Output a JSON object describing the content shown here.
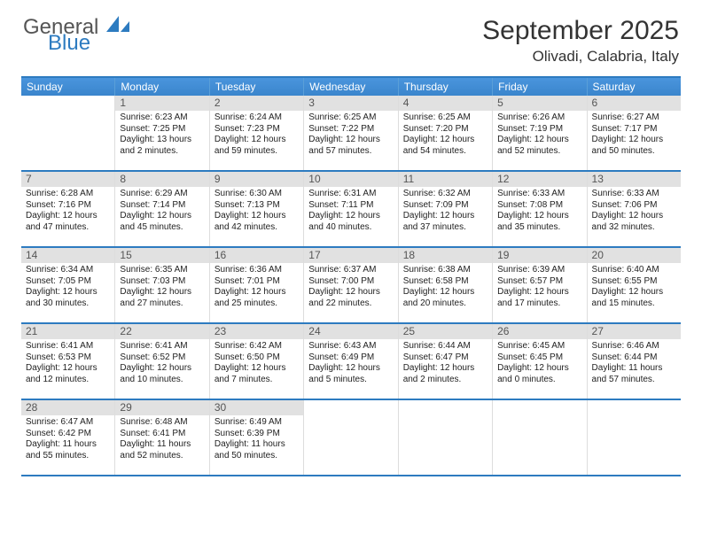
{
  "logo": {
    "general": "General",
    "blue": "Blue"
  },
  "title": "September 2025",
  "location": "Olivadi, Calabria, Italy",
  "colors": {
    "accent": "#2d7bc0",
    "header_bg": "#3a8bd8",
    "header_text": "#ffffff",
    "daynum_bg": "#e1e1e1",
    "text": "#222222"
  },
  "days_of_week": [
    "Sunday",
    "Monday",
    "Tuesday",
    "Wednesday",
    "Thursday",
    "Friday",
    "Saturday"
  ],
  "weeks": [
    [
      {
        "n": "",
        "sr": "",
        "ss": "",
        "dl1": "",
        "dl2": ""
      },
      {
        "n": "1",
        "sr": "Sunrise: 6:23 AM",
        "ss": "Sunset: 7:25 PM",
        "dl1": "Daylight: 13 hours",
        "dl2": "and 2 minutes."
      },
      {
        "n": "2",
        "sr": "Sunrise: 6:24 AM",
        "ss": "Sunset: 7:23 PM",
        "dl1": "Daylight: 12 hours",
        "dl2": "and 59 minutes."
      },
      {
        "n": "3",
        "sr": "Sunrise: 6:25 AM",
        "ss": "Sunset: 7:22 PM",
        "dl1": "Daylight: 12 hours",
        "dl2": "and 57 minutes."
      },
      {
        "n": "4",
        "sr": "Sunrise: 6:25 AM",
        "ss": "Sunset: 7:20 PM",
        "dl1": "Daylight: 12 hours",
        "dl2": "and 54 minutes."
      },
      {
        "n": "5",
        "sr": "Sunrise: 6:26 AM",
        "ss": "Sunset: 7:19 PM",
        "dl1": "Daylight: 12 hours",
        "dl2": "and 52 minutes."
      },
      {
        "n": "6",
        "sr": "Sunrise: 6:27 AM",
        "ss": "Sunset: 7:17 PM",
        "dl1": "Daylight: 12 hours",
        "dl2": "and 50 minutes."
      }
    ],
    [
      {
        "n": "7",
        "sr": "Sunrise: 6:28 AM",
        "ss": "Sunset: 7:16 PM",
        "dl1": "Daylight: 12 hours",
        "dl2": "and 47 minutes."
      },
      {
        "n": "8",
        "sr": "Sunrise: 6:29 AM",
        "ss": "Sunset: 7:14 PM",
        "dl1": "Daylight: 12 hours",
        "dl2": "and 45 minutes."
      },
      {
        "n": "9",
        "sr": "Sunrise: 6:30 AM",
        "ss": "Sunset: 7:13 PM",
        "dl1": "Daylight: 12 hours",
        "dl2": "and 42 minutes."
      },
      {
        "n": "10",
        "sr": "Sunrise: 6:31 AM",
        "ss": "Sunset: 7:11 PM",
        "dl1": "Daylight: 12 hours",
        "dl2": "and 40 minutes."
      },
      {
        "n": "11",
        "sr": "Sunrise: 6:32 AM",
        "ss": "Sunset: 7:09 PM",
        "dl1": "Daylight: 12 hours",
        "dl2": "and 37 minutes."
      },
      {
        "n": "12",
        "sr": "Sunrise: 6:33 AM",
        "ss": "Sunset: 7:08 PM",
        "dl1": "Daylight: 12 hours",
        "dl2": "and 35 minutes."
      },
      {
        "n": "13",
        "sr": "Sunrise: 6:33 AM",
        "ss": "Sunset: 7:06 PM",
        "dl1": "Daylight: 12 hours",
        "dl2": "and 32 minutes."
      }
    ],
    [
      {
        "n": "14",
        "sr": "Sunrise: 6:34 AM",
        "ss": "Sunset: 7:05 PM",
        "dl1": "Daylight: 12 hours",
        "dl2": "and 30 minutes."
      },
      {
        "n": "15",
        "sr": "Sunrise: 6:35 AM",
        "ss": "Sunset: 7:03 PM",
        "dl1": "Daylight: 12 hours",
        "dl2": "and 27 minutes."
      },
      {
        "n": "16",
        "sr": "Sunrise: 6:36 AM",
        "ss": "Sunset: 7:01 PM",
        "dl1": "Daylight: 12 hours",
        "dl2": "and 25 minutes."
      },
      {
        "n": "17",
        "sr": "Sunrise: 6:37 AM",
        "ss": "Sunset: 7:00 PM",
        "dl1": "Daylight: 12 hours",
        "dl2": "and 22 minutes."
      },
      {
        "n": "18",
        "sr": "Sunrise: 6:38 AM",
        "ss": "Sunset: 6:58 PM",
        "dl1": "Daylight: 12 hours",
        "dl2": "and 20 minutes."
      },
      {
        "n": "19",
        "sr": "Sunrise: 6:39 AM",
        "ss": "Sunset: 6:57 PM",
        "dl1": "Daylight: 12 hours",
        "dl2": "and 17 minutes."
      },
      {
        "n": "20",
        "sr": "Sunrise: 6:40 AM",
        "ss": "Sunset: 6:55 PM",
        "dl1": "Daylight: 12 hours",
        "dl2": "and 15 minutes."
      }
    ],
    [
      {
        "n": "21",
        "sr": "Sunrise: 6:41 AM",
        "ss": "Sunset: 6:53 PM",
        "dl1": "Daylight: 12 hours",
        "dl2": "and 12 minutes."
      },
      {
        "n": "22",
        "sr": "Sunrise: 6:41 AM",
        "ss": "Sunset: 6:52 PM",
        "dl1": "Daylight: 12 hours",
        "dl2": "and 10 minutes."
      },
      {
        "n": "23",
        "sr": "Sunrise: 6:42 AM",
        "ss": "Sunset: 6:50 PM",
        "dl1": "Daylight: 12 hours",
        "dl2": "and 7 minutes."
      },
      {
        "n": "24",
        "sr": "Sunrise: 6:43 AM",
        "ss": "Sunset: 6:49 PM",
        "dl1": "Daylight: 12 hours",
        "dl2": "and 5 minutes."
      },
      {
        "n": "25",
        "sr": "Sunrise: 6:44 AM",
        "ss": "Sunset: 6:47 PM",
        "dl1": "Daylight: 12 hours",
        "dl2": "and 2 minutes."
      },
      {
        "n": "26",
        "sr": "Sunrise: 6:45 AM",
        "ss": "Sunset: 6:45 PM",
        "dl1": "Daylight: 12 hours",
        "dl2": "and 0 minutes."
      },
      {
        "n": "27",
        "sr": "Sunrise: 6:46 AM",
        "ss": "Sunset: 6:44 PM",
        "dl1": "Daylight: 11 hours",
        "dl2": "and 57 minutes."
      }
    ],
    [
      {
        "n": "28",
        "sr": "Sunrise: 6:47 AM",
        "ss": "Sunset: 6:42 PM",
        "dl1": "Daylight: 11 hours",
        "dl2": "and 55 minutes."
      },
      {
        "n": "29",
        "sr": "Sunrise: 6:48 AM",
        "ss": "Sunset: 6:41 PM",
        "dl1": "Daylight: 11 hours",
        "dl2": "and 52 minutes."
      },
      {
        "n": "30",
        "sr": "Sunrise: 6:49 AM",
        "ss": "Sunset: 6:39 PM",
        "dl1": "Daylight: 11 hours",
        "dl2": "and 50 minutes."
      },
      {
        "n": "",
        "sr": "",
        "ss": "",
        "dl1": "",
        "dl2": ""
      },
      {
        "n": "",
        "sr": "",
        "ss": "",
        "dl1": "",
        "dl2": ""
      },
      {
        "n": "",
        "sr": "",
        "ss": "",
        "dl1": "",
        "dl2": ""
      },
      {
        "n": "",
        "sr": "",
        "ss": "",
        "dl1": "",
        "dl2": ""
      }
    ]
  ]
}
